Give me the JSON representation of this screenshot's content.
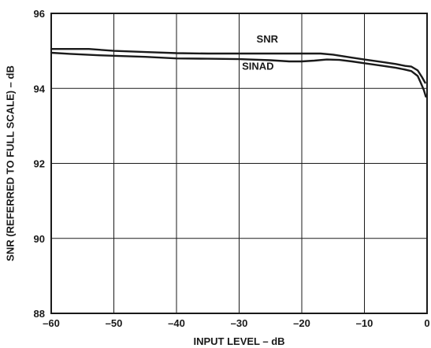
{
  "chart_data": {
    "type": "line",
    "title": "",
    "xlabel": "INPUT LEVEL – dB",
    "ylabel": "SNR (REFERRED TO FULL SCALE) – dB",
    "xlim": [
      -60,
      0
    ],
    "ylim": [
      88,
      96
    ],
    "xticks": [
      -60,
      -50,
      -40,
      -30,
      -20,
      -10,
      0
    ],
    "yticks": [
      88,
      90,
      92,
      94,
      96
    ],
    "xtick_labels": [
      "–60",
      "–50",
      "–40",
      "–30",
      "–20",
      "–10",
      "0"
    ],
    "ytick_labels": [
      "88",
      "90",
      "92",
      "94",
      "96"
    ],
    "grid": true,
    "legend": "none",
    "line_color": "#1a1a1a",
    "series": [
      {
        "name": "SNR",
        "x": [
          -60,
          -54,
          -50,
          -45,
          -40,
          -35,
          -30,
          -25,
          -20,
          -17,
          -15,
          -12,
          -10,
          -7,
          -5,
          -3.5,
          -2.5,
          -1.5,
          -0.8,
          -0.3
        ],
        "y": [
          95.05,
          95.05,
          95.0,
          94.97,
          94.94,
          94.93,
          94.93,
          94.93,
          94.93,
          94.93,
          94.9,
          94.82,
          94.77,
          94.7,
          94.65,
          94.6,
          94.58,
          94.48,
          94.3,
          94.15
        ]
      },
      {
        "name": "SINAD",
        "x": [
          -60,
          -57,
          -52,
          -45,
          -40,
          -35,
          -30,
          -25,
          -22,
          -20,
          -18,
          -16,
          -14,
          -12,
          -10,
          -7,
          -5,
          -3.5,
          -2.5,
          -1.5,
          -1,
          -0.5,
          -0.2
        ],
        "y": [
          94.95,
          94.92,
          94.88,
          94.84,
          94.8,
          94.79,
          94.78,
          94.75,
          94.72,
          94.72,
          94.74,
          94.77,
          94.76,
          94.72,
          94.67,
          94.6,
          94.55,
          94.5,
          94.46,
          94.33,
          94.15,
          93.95,
          93.78
        ]
      }
    ],
    "annotations": [
      {
        "text": "SNR",
        "x": -25.5,
        "y": 95.22
      },
      {
        "text": "SINAD",
        "x": -27,
        "y": 94.5
      }
    ]
  }
}
